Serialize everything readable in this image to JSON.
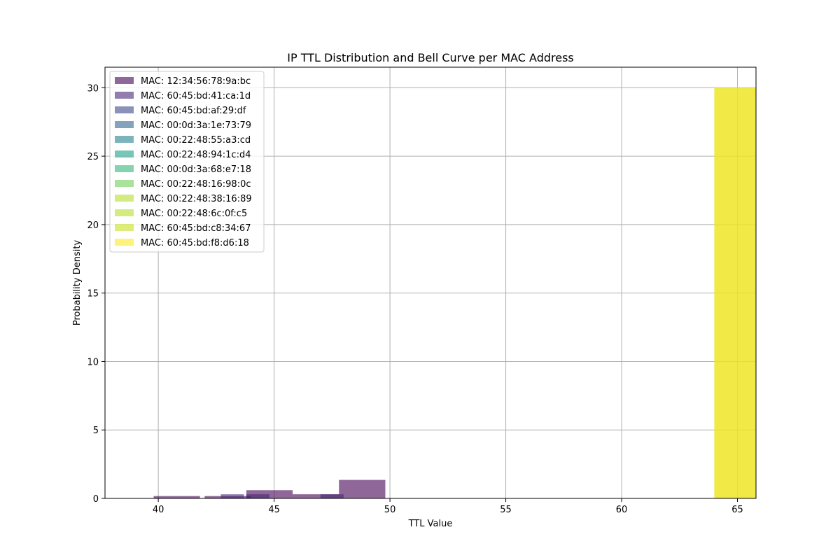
{
  "chart_data": {
    "type": "bar",
    "title": "IP TTL Distribution and Bell Curve per MAC Address",
    "xlabel": "TTL Value",
    "ylabel": "Probability Density",
    "xlim": [
      37.7,
      65.8
    ],
    "ylim": [
      0,
      31.5
    ],
    "xticks": [
      40,
      45,
      50,
      55,
      60,
      65
    ],
    "yticks": [
      0,
      5,
      10,
      15,
      20,
      25,
      30
    ],
    "grid": true,
    "legend_position": "top-left",
    "series": [
      {
        "name": "MAC: 12:34:56:78:9a:bc",
        "color": "#440154",
        "bars": [
          {
            "x0": 39.8,
            "x1": 41.8,
            "y": 0.17
          },
          {
            "x0": 42.0,
            "x1": 44.0,
            "y": 0.17
          },
          {
            "x0": 43.8,
            "x1": 45.8,
            "y": 0.6
          },
          {
            "x0": 45.8,
            "x1": 47.8,
            "y": 0.3
          },
          {
            "x0": 47.8,
            "x1": 49.8,
            "y": 1.35
          }
        ]
      },
      {
        "name": "MAC: 60:45:bd:41:ca:1d",
        "color": "#482878",
        "bars": [
          {
            "x0": 42.7,
            "x1": 43.7,
            "y": 0.3
          },
          {
            "x0": 43.8,
            "x1": 44.8,
            "y": 0.3
          },
          {
            "x0": 47.0,
            "x1": 48.0,
            "y": 0.3
          }
        ]
      },
      {
        "name": "MAC: 60:45:bd:af:29:df",
        "color": "#3e4989",
        "bars": []
      },
      {
        "name": "MAC: 00:0d:3a:1e:73:79",
        "color": "#31688e",
        "bars": []
      },
      {
        "name": "MAC: 00:22:48:55:a3:cd",
        "color": "#26828e",
        "bars": []
      },
      {
        "name": "MAC: 00:22:48:94:1c:d4",
        "color": "#1f9e89",
        "bars": []
      },
      {
        "name": "MAC: 00:0d:3a:68:e7:18",
        "color": "#35b779",
        "bars": []
      },
      {
        "name": "MAC: 00:22:48:16:98:0c",
        "color": "#6ece58",
        "bars": []
      },
      {
        "name": "MAC: 00:22:48:38:16:89",
        "color": "#b5de2b",
        "bars": []
      },
      {
        "name": "MAC: 00:22:48:6c:0f:c5",
        "color": "#b5de2b",
        "bars": []
      },
      {
        "name": "MAC: 60:45:bd:c8:34:67",
        "color": "#c8e020",
        "bars": [
          {
            "x0": 64.0,
            "x1": 66.0,
            "y": 30
          }
        ]
      },
      {
        "name": "MAC: 60:45:bd:f8:d6:18",
        "color": "#fde725",
        "bars": [
          {
            "x0": 64.0,
            "x1": 66.0,
            "y": 30
          }
        ]
      }
    ]
  }
}
